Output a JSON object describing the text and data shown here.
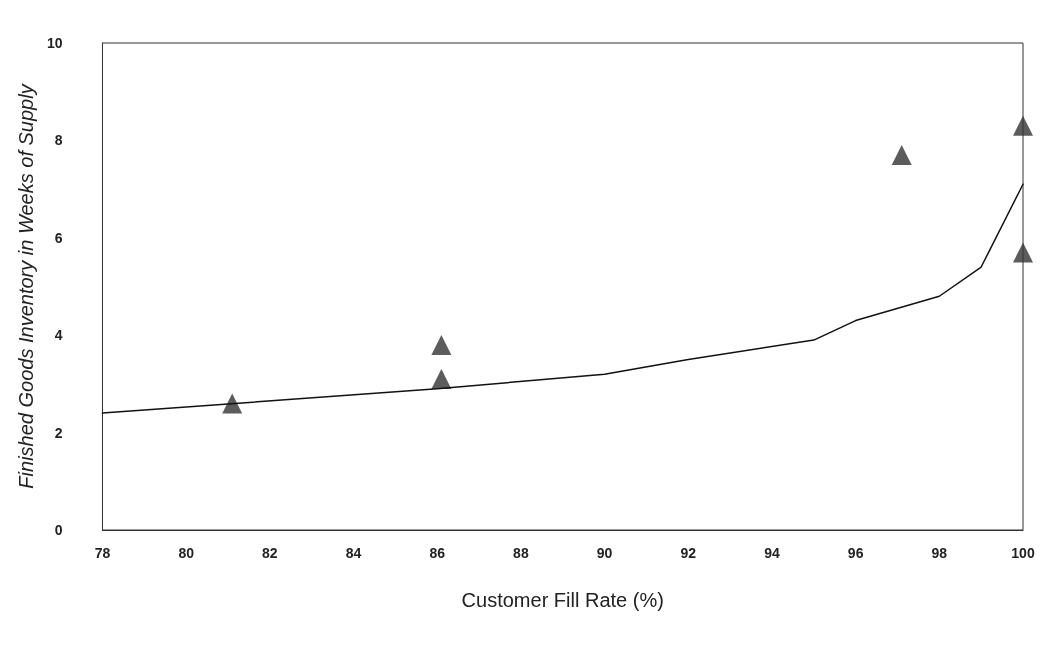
{
  "chart_data": {
    "type": "scatter",
    "xlabel": "Customer Fill Rate (%)",
    "ylabel": "Finished Goods Inventory in Weeks of Supply",
    "xlim": [
      78,
      100
    ],
    "xticks": [
      78,
      80,
      82,
      84,
      86,
      88,
      90,
      92,
      94,
      96,
      98,
      100
    ],
    "ylim": [
      0,
      10
    ],
    "yticks": [
      0,
      2,
      4,
      6,
      8,
      10
    ],
    "grid": false,
    "series": [
      {
        "color": "#333333",
        "marker": "triangle",
        "x": [
          81.1,
          86.1,
          86.1,
          97.1,
          100,
          100
        ],
        "values": [
          2.6,
          3.8,
          3.1,
          7.7,
          8.3,
          5.7
        ]
      },
      {
        "type": "line",
        "color": "#111111",
        "marker": "none",
        "line_style": "solid",
        "x": [
          78,
          86,
          90,
          92,
          95,
          96,
          98,
          99,
          100
        ],
        "values": [
          2.4,
          2.9,
          3.2,
          3.5,
          3.9,
          4.3,
          4.8,
          5.4,
          7.1
        ]
      }
    ]
  }
}
